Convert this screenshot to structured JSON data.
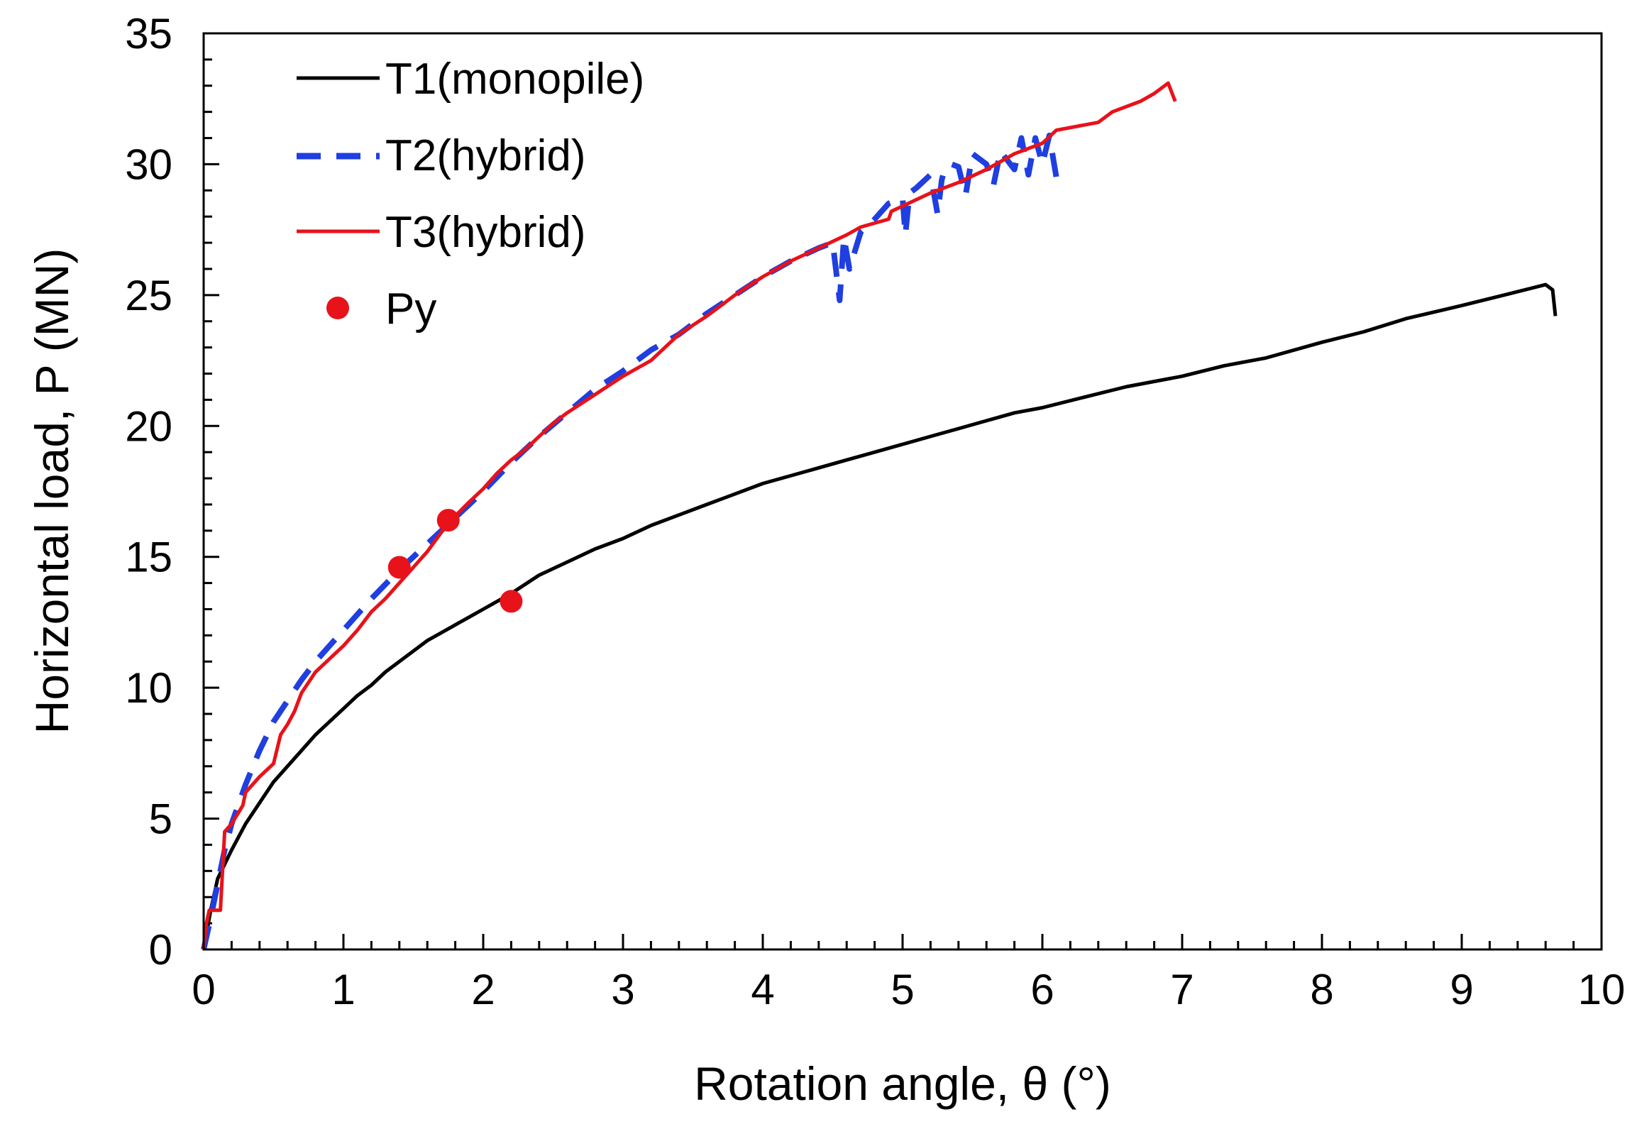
{
  "chart_data": {
    "type": "line",
    "title": "",
    "xlabel": "Rotation angle, θ (°)",
    "ylabel": "Horizontal load, P (MN)",
    "xlim": [
      0,
      10
    ],
    "ylim": [
      0,
      35
    ],
    "xticks": [
      0,
      1,
      2,
      3,
      4,
      5,
      6,
      7,
      8,
      9,
      10
    ],
    "yticks": [
      0,
      5,
      10,
      15,
      20,
      25,
      30,
      35
    ],
    "grid": false,
    "legend_position": "top-left",
    "series": [
      {
        "name": "T1(monopile)",
        "color": "#000000",
        "style": "solid",
        "x": [
          0,
          0.05,
          0.1,
          0.2,
          0.3,
          0.4,
          0.5,
          0.6,
          0.7,
          0.8,
          0.9,
          1.0,
          1.1,
          1.2,
          1.3,
          1.4,
          1.5,
          1.6,
          1.7,
          1.8,
          1.9,
          2.0,
          2.1,
          2.2,
          2.4,
          2.6,
          2.8,
          3.0,
          3.2,
          3.4,
          3.6,
          3.8,
          4.0,
          4.2,
          4.4,
          4.6,
          4.8,
          5.0,
          5.2,
          5.4,
          5.6,
          5.8,
          6.0,
          6.3,
          6.6,
          7.0,
          7.3,
          7.6,
          8.0,
          8.3,
          8.6,
          9.0,
          9.3,
          9.6,
          9.65,
          9.67
        ],
        "y": [
          0,
          1.5,
          2.7,
          3.8,
          4.8,
          5.6,
          6.4,
          7.0,
          7.6,
          8.2,
          8.7,
          9.2,
          9.7,
          10.1,
          10.6,
          11.0,
          11.4,
          11.8,
          12.1,
          12.4,
          12.7,
          13.0,
          13.3,
          13.6,
          14.3,
          14.8,
          15.3,
          15.7,
          16.2,
          16.6,
          17.0,
          17.4,
          17.8,
          18.1,
          18.4,
          18.7,
          19.0,
          19.3,
          19.6,
          19.9,
          20.2,
          20.5,
          20.7,
          21.1,
          21.5,
          21.9,
          22.3,
          22.6,
          23.2,
          23.6,
          24.1,
          24.6,
          25.0,
          25.4,
          25.2,
          24.2
        ]
      },
      {
        "name": "T2(hybrid)",
        "color": "#1f3fe0",
        "style": "dashed",
        "x": [
          0,
          0.05,
          0.1,
          0.15,
          0.2,
          0.3,
          0.4,
          0.5,
          0.6,
          0.7,
          0.8,
          1.0,
          1.2,
          1.4,
          1.6,
          1.8,
          2.0,
          2.2,
          2.4,
          2.6,
          2.8,
          3.0,
          3.2,
          3.4,
          3.6,
          3.8,
          4.0,
          4.2,
          4.4,
          4.5,
          4.55,
          4.58,
          4.62,
          4.7,
          4.8,
          4.9,
          5.0,
          5.02,
          5.05,
          5.1,
          5.2,
          5.25,
          5.28,
          5.3,
          5.35,
          5.4,
          5.45,
          5.5,
          5.6,
          5.65,
          5.7,
          5.8,
          5.85,
          5.9,
          5.95,
          6.0,
          6.05,
          6.1
        ],
        "y": [
          0,
          1.2,
          2.5,
          3.8,
          4.8,
          6.3,
          7.6,
          8.7,
          9.5,
          10.3,
          11.0,
          12.2,
          13.4,
          14.5,
          15.5,
          16.5,
          17.5,
          18.6,
          19.6,
          20.5,
          21.4,
          22.1,
          22.9,
          23.5,
          24.3,
          25.0,
          25.7,
          26.3,
          26.8,
          27.0,
          24.8,
          27.2,
          26.0,
          27.4,
          27.9,
          28.5,
          28.7,
          27.3,
          28.9,
          29.1,
          29.6,
          28.1,
          29.4,
          29.8,
          30.0,
          29.9,
          28.8,
          30.4,
          30.0,
          29.2,
          30.5,
          29.8,
          31.0,
          29.6,
          31.0,
          30.0,
          31.1,
          29.5
        ]
      },
      {
        "name": "T3(hybrid)",
        "color": "#e8121a",
        "style": "solid",
        "x": [
          0,
          0.02,
          0.04,
          0.1,
          0.12,
          0.15,
          0.2,
          0.28,
          0.3,
          0.4,
          0.5,
          0.55,
          0.6,
          0.65,
          0.7,
          0.8,
          0.9,
          1.0,
          1.1,
          1.2,
          1.3,
          1.4,
          1.5,
          1.6,
          1.75,
          1.9,
          2.0,
          2.1,
          2.2,
          2.3,
          2.5,
          2.6,
          2.8,
          3.0,
          3.2,
          3.4,
          3.6,
          3.8,
          4.0,
          4.2,
          4.4,
          4.6,
          4.7,
          4.9,
          4.92,
          5.0,
          5.2,
          5.4,
          5.6,
          5.8,
          6.0,
          6.1,
          6.4,
          6.5,
          6.7,
          6.8,
          6.9,
          6.95
        ],
        "y": [
          0,
          1.0,
          1.5,
          1.5,
          1.5,
          4.5,
          4.8,
          5.5,
          6.0,
          6.6,
          7.1,
          8.2,
          8.6,
          9.1,
          9.8,
          10.6,
          11.1,
          11.6,
          12.2,
          12.9,
          13.4,
          14.0,
          14.6,
          15.2,
          16.3,
          17.1,
          17.6,
          18.2,
          18.7,
          19.1,
          20.1,
          20.5,
          21.2,
          21.9,
          22.5,
          23.5,
          24.2,
          25.0,
          25.7,
          26.3,
          26.8,
          27.3,
          27.6,
          27.9,
          28.2,
          28.4,
          28.9,
          29.3,
          29.8,
          30.4,
          30.8,
          31.3,
          31.6,
          32.0,
          32.4,
          32.7,
          33.1,
          32.4
        ]
      }
    ],
    "markers": {
      "name": "Py",
      "color": "#e8121a",
      "x": [
        1.4,
        1.75,
        2.2
      ],
      "y": [
        14.6,
        16.4,
        13.3
      ]
    }
  }
}
